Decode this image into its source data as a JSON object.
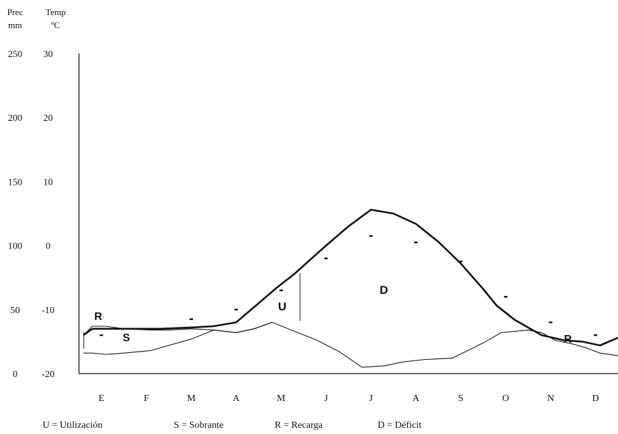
{
  "chart_data": {
    "type": "line",
    "title": "",
    "y_left": {
      "label_line1": "Prec",
      "label_line2": "mm",
      "ticks": [
        0,
        50,
        100,
        150,
        200,
        250
      ],
      "range": [
        0,
        250
      ]
    },
    "y_right": {
      "label_line1": "Temp",
      "label_line2": "ºC",
      "ticks": [
        -20,
        -10,
        0,
        10,
        20,
        30
      ],
      "range": [
        -20,
        30
      ]
    },
    "categories": [
      "E",
      "F",
      "M",
      "A",
      "M",
      "J",
      "J",
      "A",
      "S",
      "O",
      "N",
      "D"
    ],
    "x_month_positions": [
      0.5,
      1.5,
      2.5,
      3.5,
      4.5,
      5.5,
      6.5,
      7.5,
      8.5,
      9.5,
      10.5,
      11.5
    ],
    "series": [
      {
        "key": "temp",
        "style": "dots",
        "axis": "right",
        "values": [
          -14,
          -13,
          -11.5,
          -10,
          -7,
          -2,
          1.5,
          0.5,
          -2.5,
          -8,
          -12,
          -14
        ]
      },
      {
        "key": "etp",
        "style": "thick-line",
        "x": [
          0.1,
          0.3,
          1.0,
          1.8,
          2.5,
          3.0,
          3.5,
          4.0,
          4.4,
          4.8,
          5.5,
          6.0,
          6.5,
          7.0,
          7.5,
          8.0,
          8.5,
          9.0,
          9.3,
          9.7,
          10.3,
          10.8,
          11.2,
          11.6,
          12.0
        ],
        "values": [
          30,
          35,
          35,
          35,
          36,
          37,
          40,
          55,
          67,
          78,
          100,
          115,
          128,
          125,
          117,
          103,
          86,
          66,
          53,
          42,
          30,
          26,
          25,
          22,
          28
        ]
      },
      {
        "key": "prec",
        "style": "thin-line",
        "x": [
          0.1,
          0.3,
          0.6,
          1.0,
          1.6,
          2.0,
          2.5,
          3.0,
          3.5,
          3.9,
          4.3,
          4.8,
          5.3,
          5.8,
          6.3,
          6.8,
          7.2,
          7.7,
          8.3,
          8.6,
          9.0,
          9.4,
          10.0,
          10.3,
          10.6,
          11.0,
          11.3,
          11.6,
          12.0
        ],
        "values": [
          16,
          16,
          15,
          16,
          18,
          22,
          27,
          34,
          32,
          35,
          40,
          33,
          26,
          17,
          5,
          6,
          9,
          11,
          12,
          17,
          24,
          32,
          34,
          32,
          26,
          23,
          20,
          16,
          14
        ]
      },
      {
        "key": "soil",
        "style": "thin-line",
        "x": [
          0.1,
          0.3,
          0.6,
          1.0,
          1.6,
          2.0,
          2.5,
          3.0,
          3.5,
          3.9,
          4.3
        ],
        "values": [
          30,
          37,
          37,
          35,
          34,
          34,
          35,
          34,
          32,
          35,
          40
        ]
      }
    ],
    "annotations": {
      "recarga_left": "R",
      "sobrante": "S",
      "utilizacion": "U",
      "deficit": "D",
      "recarga_right": "R"
    }
  },
  "legend": {
    "u": "U =  Utilización",
    "s": "S =  Sobrante",
    "r": "R =  Recarga",
    "d": "D = Déficit"
  }
}
